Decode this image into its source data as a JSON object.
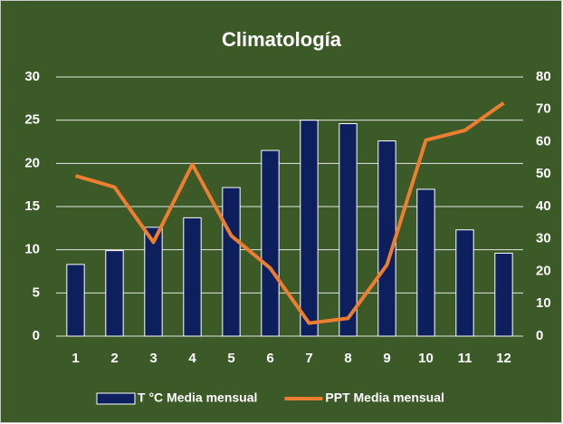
{
  "chart_data": {
    "type": "bar",
    "title": "Climatología",
    "categories": [
      "1",
      "2",
      "3",
      "4",
      "5",
      "6",
      "7",
      "8",
      "9",
      "10",
      "11",
      "12"
    ],
    "series": [
      {
        "name": "T °C Media mensual",
        "type": "bar",
        "color": "#0d1f5c",
        "values": [
          8.3,
          9.9,
          12.6,
          13.7,
          17.2,
          21.5,
          25,
          24.6,
          22.6,
          17,
          12.3,
          9.6
        ]
      },
      {
        "name": "PPT Media mensual",
        "type": "line",
        "axis": "y2",
        "color": "#ed7d31",
        "values": [
          49.5,
          46,
          29,
          53,
          31,
          21,
          4,
          5.5,
          22,
          60.5,
          63.5,
          72
        ]
      }
    ],
    "ylim": [
      0,
      30
    ],
    "yticks": [
      0,
      5,
      10,
      15,
      20,
      25,
      30
    ],
    "y2lim": [
      0,
      80
    ],
    "y2ticks": [
      0,
      10,
      20,
      30,
      40,
      50,
      60,
      70,
      80
    ],
    "grid": true,
    "legend": "bottom"
  }
}
